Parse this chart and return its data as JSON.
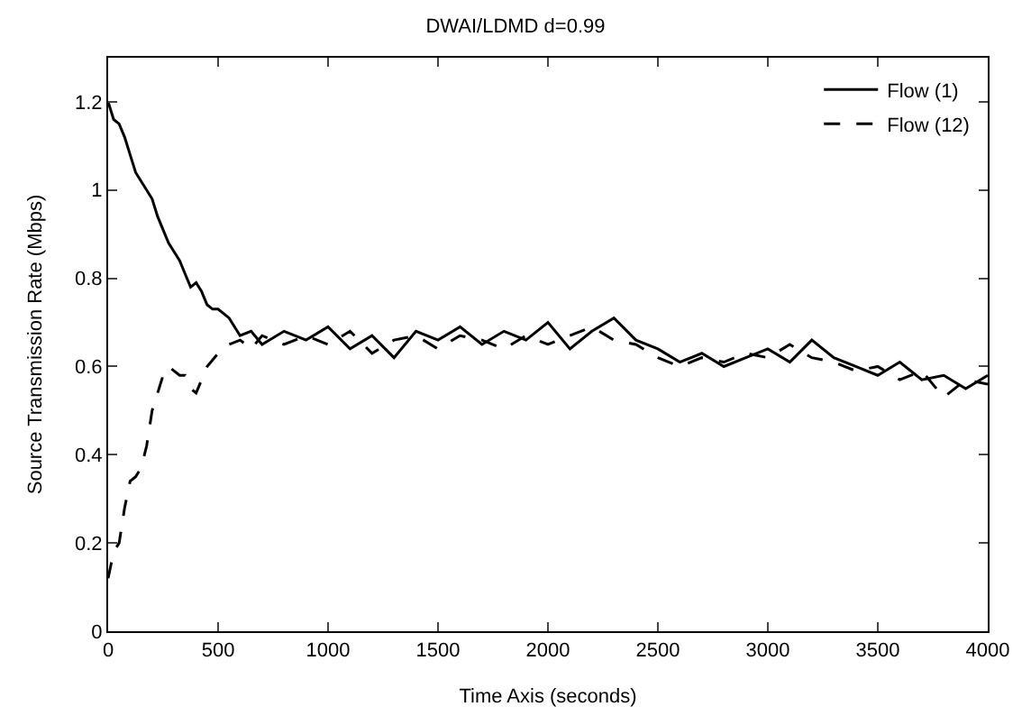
{
  "chart_data": {
    "type": "line",
    "title": "DWAI/LDMD d=0.99",
    "xlabel": "Time Axis (seconds)",
    "ylabel": "Source Transmission Rate (Mbps)",
    "xlim": [
      0,
      4000
    ],
    "ylim": [
      0,
      1.3
    ],
    "xticks": [
      0,
      500,
      1000,
      1500,
      2000,
      2500,
      3000,
      3500,
      4000
    ],
    "yticks": [
      0,
      0.2,
      0.4,
      0.6,
      0.8,
      1,
      1.2
    ],
    "legend": "top right",
    "marker": "none",
    "series": [
      {
        "name": "Flow (1)",
        "color": "#000000",
        "line_style": "solid",
        "x": [
          0,
          25,
          50,
          75,
          100,
          125,
          150,
          175,
          200,
          225,
          250,
          275,
          300,
          325,
          350,
          375,
          400,
          425,
          450,
          475,
          500,
          550,
          600,
          650,
          700,
          800,
          900,
          1000,
          1100,
          1200,
          1300,
          1400,
          1500,
          1600,
          1700,
          1800,
          1900,
          2000,
          2100,
          2200,
          2300,
          2400,
          2500,
          2600,
          2700,
          2800,
          2900,
          3000,
          3100,
          3200,
          3300,
          3400,
          3500,
          3600,
          3700,
          3800,
          3900,
          4000
        ],
        "values": [
          1.2,
          1.16,
          1.15,
          1.12,
          1.08,
          1.04,
          1.02,
          1.0,
          0.98,
          0.94,
          0.91,
          0.88,
          0.86,
          0.84,
          0.81,
          0.78,
          0.79,
          0.77,
          0.74,
          0.73,
          0.73,
          0.71,
          0.67,
          0.68,
          0.65,
          0.68,
          0.66,
          0.69,
          0.64,
          0.67,
          0.62,
          0.68,
          0.66,
          0.69,
          0.65,
          0.68,
          0.66,
          0.7,
          0.64,
          0.68,
          0.71,
          0.66,
          0.64,
          0.61,
          0.63,
          0.6,
          0.62,
          0.64,
          0.61,
          0.66,
          0.62,
          0.6,
          0.58,
          0.61,
          0.57,
          0.58,
          0.55,
          0.58
        ]
      },
      {
        "name": "Flow (12)",
        "color": "#000000",
        "line_style": "dashed",
        "x": [
          0,
          25,
          50,
          75,
          100,
          125,
          150,
          175,
          200,
          225,
          250,
          275,
          300,
          325,
          350,
          375,
          400,
          425,
          450,
          500,
          550,
          600,
          650,
          700,
          800,
          900,
          1000,
          1100,
          1200,
          1300,
          1400,
          1500,
          1600,
          1700,
          1800,
          1900,
          2000,
          2100,
          2200,
          2300,
          2400,
          2500,
          2600,
          2700,
          2800,
          2900,
          3000,
          3100,
          3200,
          3300,
          3400,
          3500,
          3600,
          3700,
          3800,
          3900,
          4000
        ],
        "values": [
          0.12,
          0.18,
          0.2,
          0.28,
          0.34,
          0.35,
          0.37,
          0.42,
          0.5,
          0.54,
          0.58,
          0.6,
          0.59,
          0.58,
          0.58,
          0.55,
          0.54,
          0.57,
          0.6,
          0.63,
          0.65,
          0.66,
          0.64,
          0.67,
          0.65,
          0.67,
          0.65,
          0.68,
          0.63,
          0.66,
          0.67,
          0.64,
          0.67,
          0.66,
          0.64,
          0.67,
          0.65,
          0.67,
          0.69,
          0.66,
          0.65,
          0.62,
          0.6,
          0.62,
          0.61,
          0.63,
          0.62,
          0.65,
          0.62,
          0.61,
          0.59,
          0.6,
          0.57,
          0.59,
          0.53,
          0.57,
          0.56
        ]
      }
    ]
  }
}
